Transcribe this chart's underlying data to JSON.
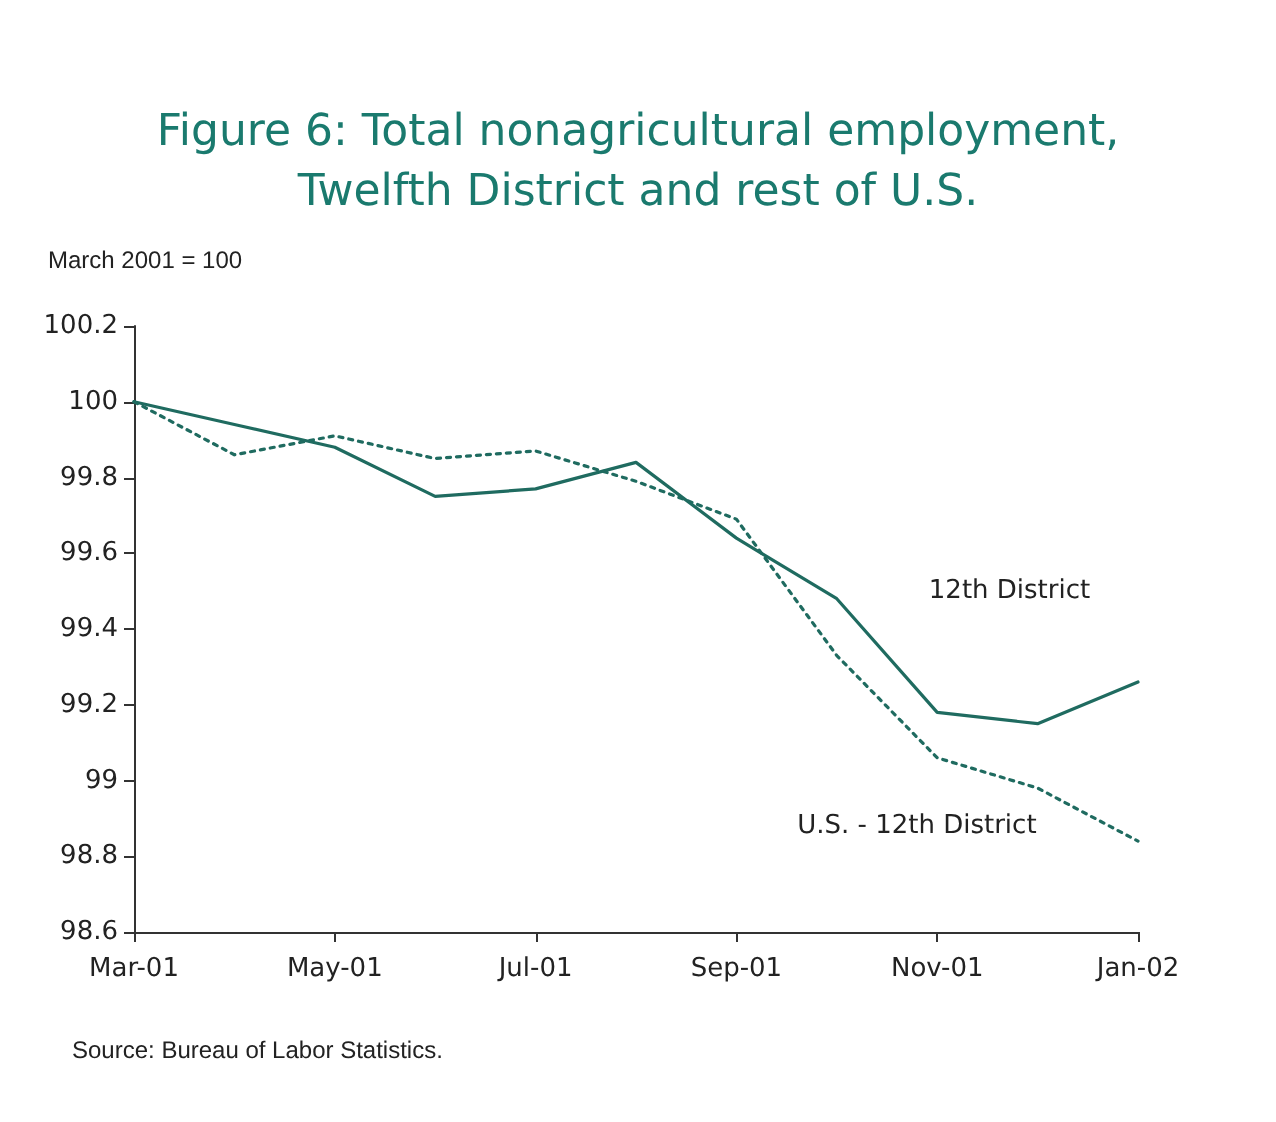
{
  "chart_data": {
    "type": "line",
    "title": "Figure 6: Total nonagricultural employment,\nTwelfth District and rest of U.S.",
    "ylabel": "March 2001 = 100",
    "categories": [
      "Mar-01",
      null,
      "May-01",
      null,
      "Jul-01",
      null,
      "Sep-01",
      null,
      "Nov-01",
      null,
      "Jan-02"
    ],
    "series": [
      {
        "name": "12th District",
        "color": "#1f6b60",
        "line_style": "solid",
        "values": [
          100,
          99.94,
          99.88,
          99.75,
          99.77,
          99.84,
          99.64,
          99.48,
          99.18,
          99.15,
          99.26
        ]
      },
      {
        "name": "U.S. - 12th District",
        "color": "#1f6b60",
        "line_style": "dotted",
        "values": [
          100,
          99.86,
          99.91,
          99.85,
          99.87,
          99.79,
          99.69,
          99.33,
          99.06,
          98.98,
          98.84
        ]
      }
    ],
    "ylim": [
      98.6,
      100.2
    ],
    "yticks": [
      98.6,
      98.8,
      99,
      99.2,
      99.4,
      99.6,
      99.8,
      100,
      100.2
    ],
    "grid": false,
    "legend": false,
    "marker": "none",
    "annotations": [
      "Source: Bureau of Labor Statistics."
    ]
  }
}
